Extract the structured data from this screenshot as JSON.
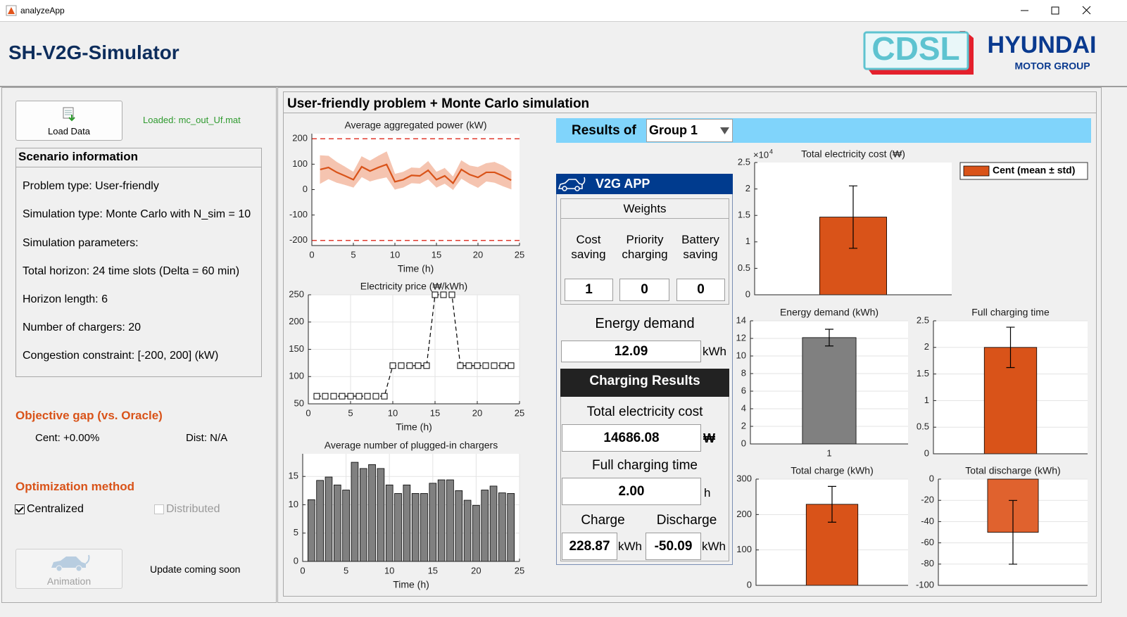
{
  "window": {
    "title": "analyzeApp"
  },
  "header": {
    "title": "SH-V2G-Simulator",
    "logo_left": "CDSL",
    "logo_right": "HYUNDAI",
    "logo_right_sub": "MOTOR GROUP"
  },
  "sidebar": {
    "load_button": "Load Data",
    "load_status": "Loaded: mc_out_Uf.mat",
    "scenario": {
      "title": "Scenario information",
      "lines": [
        "Problem type: User-friendly",
        "Simulation type: Monte Carlo with N_sim = 10",
        "Simulation parameters:",
        "Total horizon: 24 time slots (Delta = 60 min)",
        "Horizon length: 6",
        "Number of chargers: 20",
        "Congestion constraint: [-200, 200] (kW)"
      ]
    },
    "objective_gap": {
      "title": "Objective gap (vs. Oracle)",
      "cent": "Cent: +0.00%",
      "dist": "Dist: N/A"
    },
    "optimization": {
      "title": "Optimization method",
      "options": [
        {
          "label": "Centralized",
          "checked": true,
          "enabled": true
        },
        {
          "label": "Distributed",
          "checked": false,
          "enabled": false
        }
      ]
    },
    "animation_button": "Animation",
    "animation_note": "Update coming soon"
  },
  "main": {
    "title": "User-friendly problem + Monte Carlo simulation",
    "results_label": "Results of",
    "group": "Group 1",
    "app": {
      "title": "V2G APP",
      "weights_title": "Weights",
      "weights": [
        {
          "label": "Cost saving",
          "value": "1"
        },
        {
          "label": "Priority charging",
          "value": "0"
        },
        {
          "label": "Battery saving",
          "value": "0"
        }
      ],
      "energy_demand": {
        "label": "Energy demand",
        "value": "12.09",
        "unit": "kWh"
      },
      "results_title": "Charging Results",
      "total_cost": {
        "label": "Total electricity cost",
        "value": "14686.08",
        "unit": "₩"
      },
      "full_time": {
        "label": "Full charging time",
        "value": "2.00",
        "unit": "h"
      },
      "charge": {
        "label": "Charge",
        "value": "228.87",
        "unit": "kWh"
      },
      "discharge": {
        "label": "Discharge",
        "value": "-50.09",
        "unit": "kWh"
      }
    }
  },
  "chart_data": [
    {
      "type": "line",
      "title": "Average aggregated power (kW)",
      "xlabel": "Time (h)",
      "x": [
        1,
        2,
        3,
        4,
        5,
        6,
        7,
        8,
        9,
        10,
        11,
        12,
        13,
        14,
        15,
        16,
        17,
        18,
        19,
        20,
        21,
        22,
        23,
        24
      ],
      "values": [
        79,
        87,
        68,
        54,
        39,
        90,
        73,
        87,
        99,
        31,
        39,
        56,
        54,
        76,
        39,
        54,
        25,
        79,
        59,
        48,
        68,
        68,
        54,
        37
      ],
      "std": [
        55,
        45,
        40,
        35,
        30,
        40,
        40,
        45,
        50,
        30,
        30,
        30,
        30,
        35,
        30,
        30,
        25,
        35,
        35,
        40,
        35,
        40,
        40,
        35
      ],
      "color": "#d95319",
      "band_color": "#f5c4b0",
      "limits": [
        -200,
        200
      ],
      "limit_color": "#e03a2e",
      "xlim": [
        0,
        25
      ],
      "xticks": [
        0,
        5,
        10,
        15,
        20,
        25
      ],
      "ylim": [
        -220,
        220
      ],
      "yticks": [
        -200,
        -100,
        0,
        100,
        200
      ],
      "grid": false
    },
    {
      "type": "line",
      "title": "Electricity price (₩/kWh)",
      "xlabel": "Time (h)",
      "x": [
        1,
        2,
        3,
        4,
        5,
        6,
        7,
        8,
        9,
        10,
        11,
        12,
        13,
        14,
        15,
        16,
        17,
        18,
        19,
        20,
        21,
        22,
        23,
        24
      ],
      "values": [
        64,
        64,
        64,
        64,
        64,
        64,
        64,
        64,
        64,
        120,
        120,
        120,
        120,
        120,
        250,
        250,
        250,
        120,
        120,
        120,
        120,
        120,
        120,
        120
      ],
      "color": "#000000",
      "line_style": "dashed",
      "marker": "square",
      "xlim": [
        0,
        25
      ],
      "xticks": [
        0,
        5,
        10,
        15,
        20,
        25
      ],
      "ylim": [
        50,
        250
      ],
      "yticks": [
        50,
        100,
        150,
        200,
        250
      ],
      "grid": true
    },
    {
      "type": "bar",
      "title": "Average number of plugged-in chargers",
      "xlabel": "Time (h)",
      "x": [
        1,
        2,
        3,
        4,
        5,
        6,
        7,
        8,
        9,
        10,
        11,
        12,
        13,
        14,
        15,
        16,
        17,
        18,
        19,
        20,
        21,
        22,
        23,
        24
      ],
      "values": [
        10.9,
        14.3,
        14.9,
        13.5,
        12.6,
        17.5,
        16.4,
        17.1,
        16.4,
        13.5,
        12,
        13.5,
        12,
        12,
        13.8,
        14.4,
        14.4,
        12.5,
        10.8,
        9.9,
        12.6,
        13.3,
        12.1,
        12
      ],
      "color": "#808080",
      "xlim": [
        0,
        25
      ],
      "xticks": [
        0,
        5,
        10,
        15,
        20,
        25
      ],
      "ylim": [
        0,
        19
      ],
      "yticks": [
        0,
        5,
        10,
        15
      ],
      "grid": true
    },
    {
      "type": "errorbar",
      "title": "Total electricity cost (₩)",
      "series": [
        {
          "name": "Cent (mean ± std)",
          "color": "#d95319",
          "values": [
            14686.08
          ],
          "errors": [
            5900
          ]
        }
      ],
      "ylim": [
        0,
        25000
      ],
      "yticks": [
        0,
        {
          "value": 5000,
          "label": "0.5"
        },
        {
          "value": 10000,
          "label": "1"
        },
        {
          "value": 15000,
          "label": "1.5"
        },
        {
          "value": 20000,
          "label": "2"
        },
        {
          "value": 25000,
          "label": "2.5"
        }
      ],
      "y_exponent_base": "×10",
      "y_exponent": "4",
      "grid": false
    },
    {
      "type": "errorbar",
      "title": "Energy demand (kWh)",
      "categories": [
        "1"
      ],
      "values": [
        12.09
      ],
      "errors": [
        0.95
      ],
      "color": "#808080",
      "ylim": [
        0,
        14
      ],
      "yticks": [
        0,
        2,
        4,
        6,
        8,
        10,
        12,
        14
      ],
      "grid": true
    },
    {
      "type": "errorbar",
      "title": "Full charging time",
      "values": [
        2
      ],
      "errors": [
        0.38
      ],
      "color": "#d95319",
      "ylim": [
        0,
        2.5
      ],
      "yticks": [
        0,
        0.5,
        1,
        1.5,
        2,
        2.5
      ],
      "grid": true
    },
    {
      "type": "errorbar",
      "title": "Total charge (kWh)",
      "values": [
        228.87
      ],
      "errors": [
        50.5
      ],
      "color": "#d95319",
      "ylim": [
        0,
        300
      ],
      "yticks": [
        0,
        100,
        200,
        300
      ],
      "grid": true
    },
    {
      "type": "errorbar",
      "title": "Total discharge (kWh)",
      "values": [
        -50.09
      ],
      "errors": [
        30
      ],
      "color": "#e0622e",
      "ylim": [
        -100,
        0
      ],
      "yticks": [
        -100,
        -80,
        -60,
        -40,
        -20,
        0
      ],
      "grid": true
    }
  ]
}
